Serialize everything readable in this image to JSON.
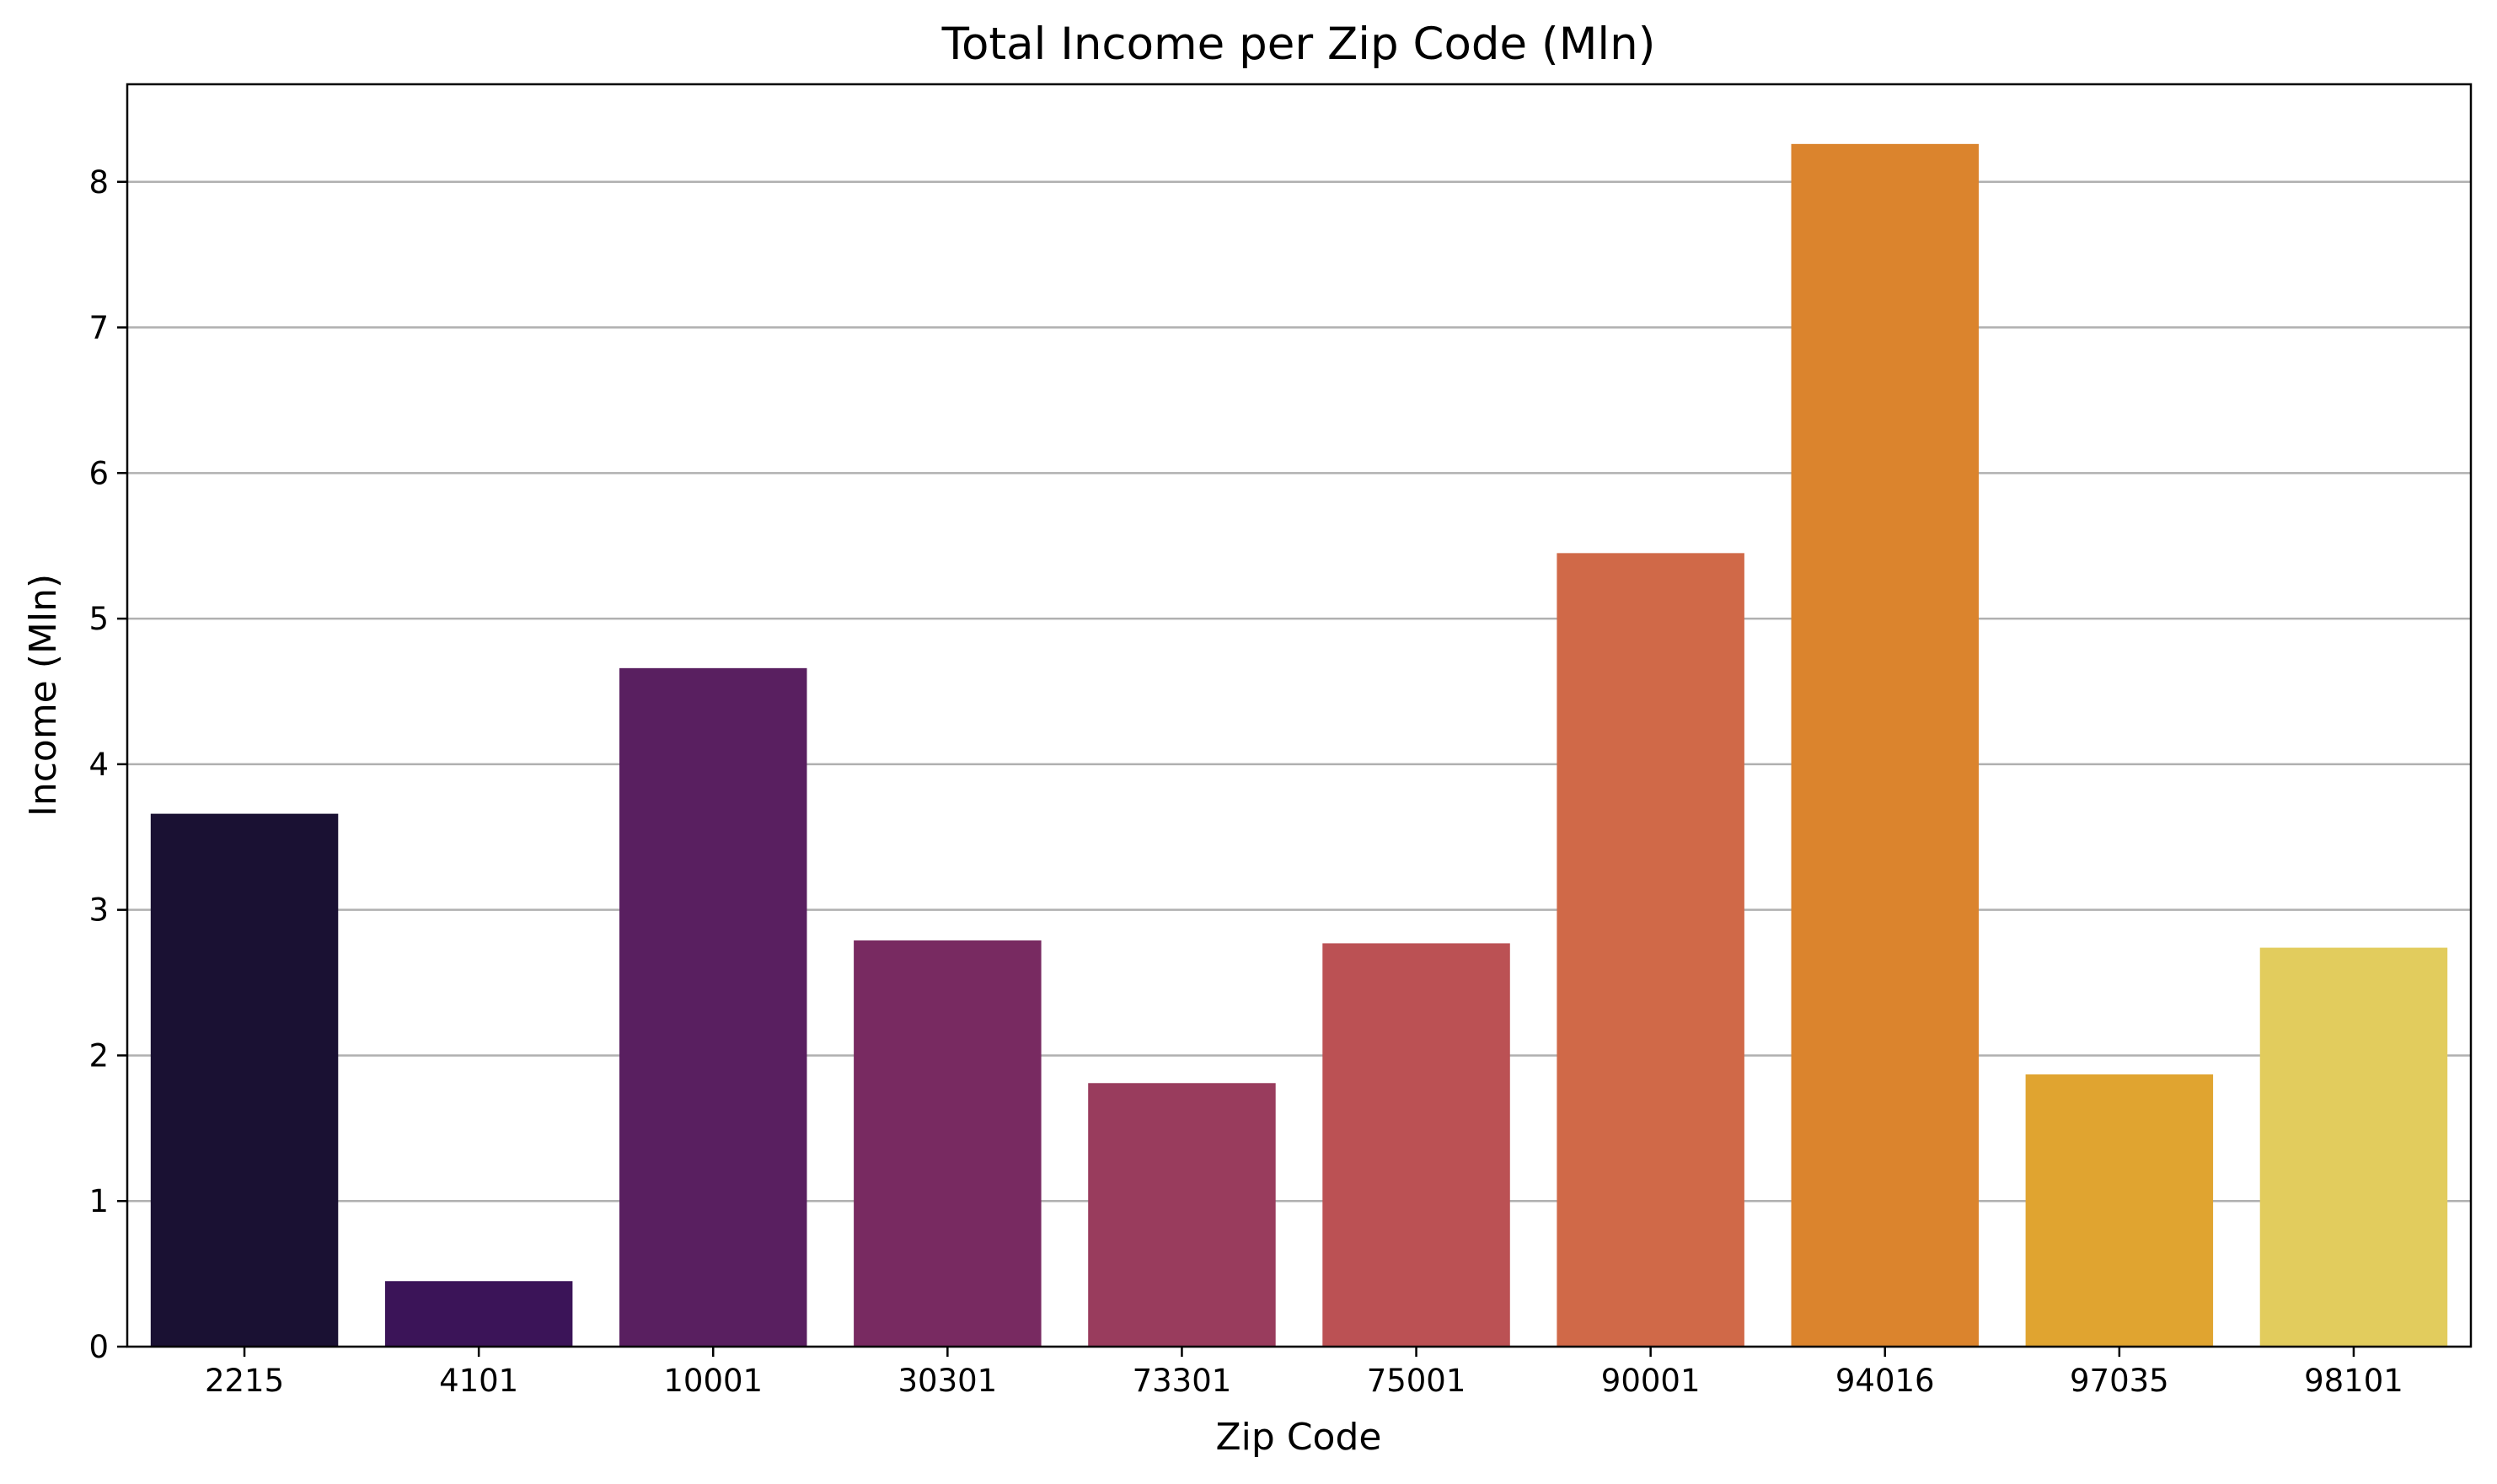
{
  "chart_data": {
    "type": "bar",
    "title": "Total Income per Zip Code (Mln)",
    "xlabel": "Zip Code",
    "ylabel": "Income (Mln)",
    "categories": [
      "2215",
      "4101",
      "10001",
      "30301",
      "73301",
      "75001",
      "90001",
      "94016",
      "97035",
      "98101"
    ],
    "values": [
      3.66,
      0.45,
      4.66,
      2.79,
      1.81,
      2.77,
      5.45,
      8.26,
      1.87,
      2.74
    ],
    "colors": [
      "#1a1133",
      "#3b1458",
      "#591f60",
      "#782a61",
      "#993c5d",
      "#bb5154",
      "#d06948",
      "#db842d",
      "#e0a430",
      "#e2cc5d"
    ],
    "ylim": [
      0,
      8.67
    ],
    "yticks": [
      0,
      1,
      2,
      3,
      4,
      5,
      6,
      7,
      8
    ],
    "grid": "y",
    "legend": "none"
  }
}
